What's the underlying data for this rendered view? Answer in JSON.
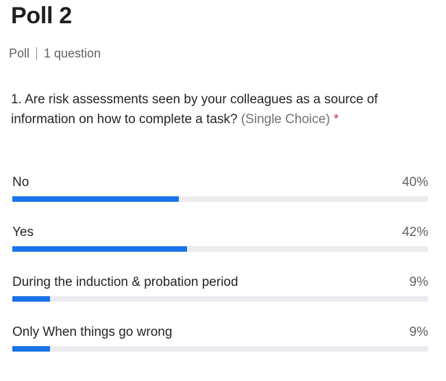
{
  "poll": {
    "title": "Poll 2",
    "type_label": "Poll",
    "question_count": "1 question"
  },
  "question": {
    "text": "1. Are risk assessments seen by your colleagues as a source of information on how to complete a task?",
    "type": "(Single Choice)",
    "required_marker": "*"
  },
  "options": [
    {
      "label": "No",
      "percent_label": "40%",
      "percent": 40
    },
    {
      "label": "Yes",
      "percent_label": "42%",
      "percent": 42
    },
    {
      "label": "During the induction & probation period",
      "percent_label": "9%",
      "percent": 9
    },
    {
      "label": "Only When things go wrong",
      "percent_label": "9%",
      "percent": 9
    }
  ],
  "colors": {
    "bar_fill": "#1a73e8",
    "bar_track": "#ececf0",
    "required": "#c4314b"
  }
}
